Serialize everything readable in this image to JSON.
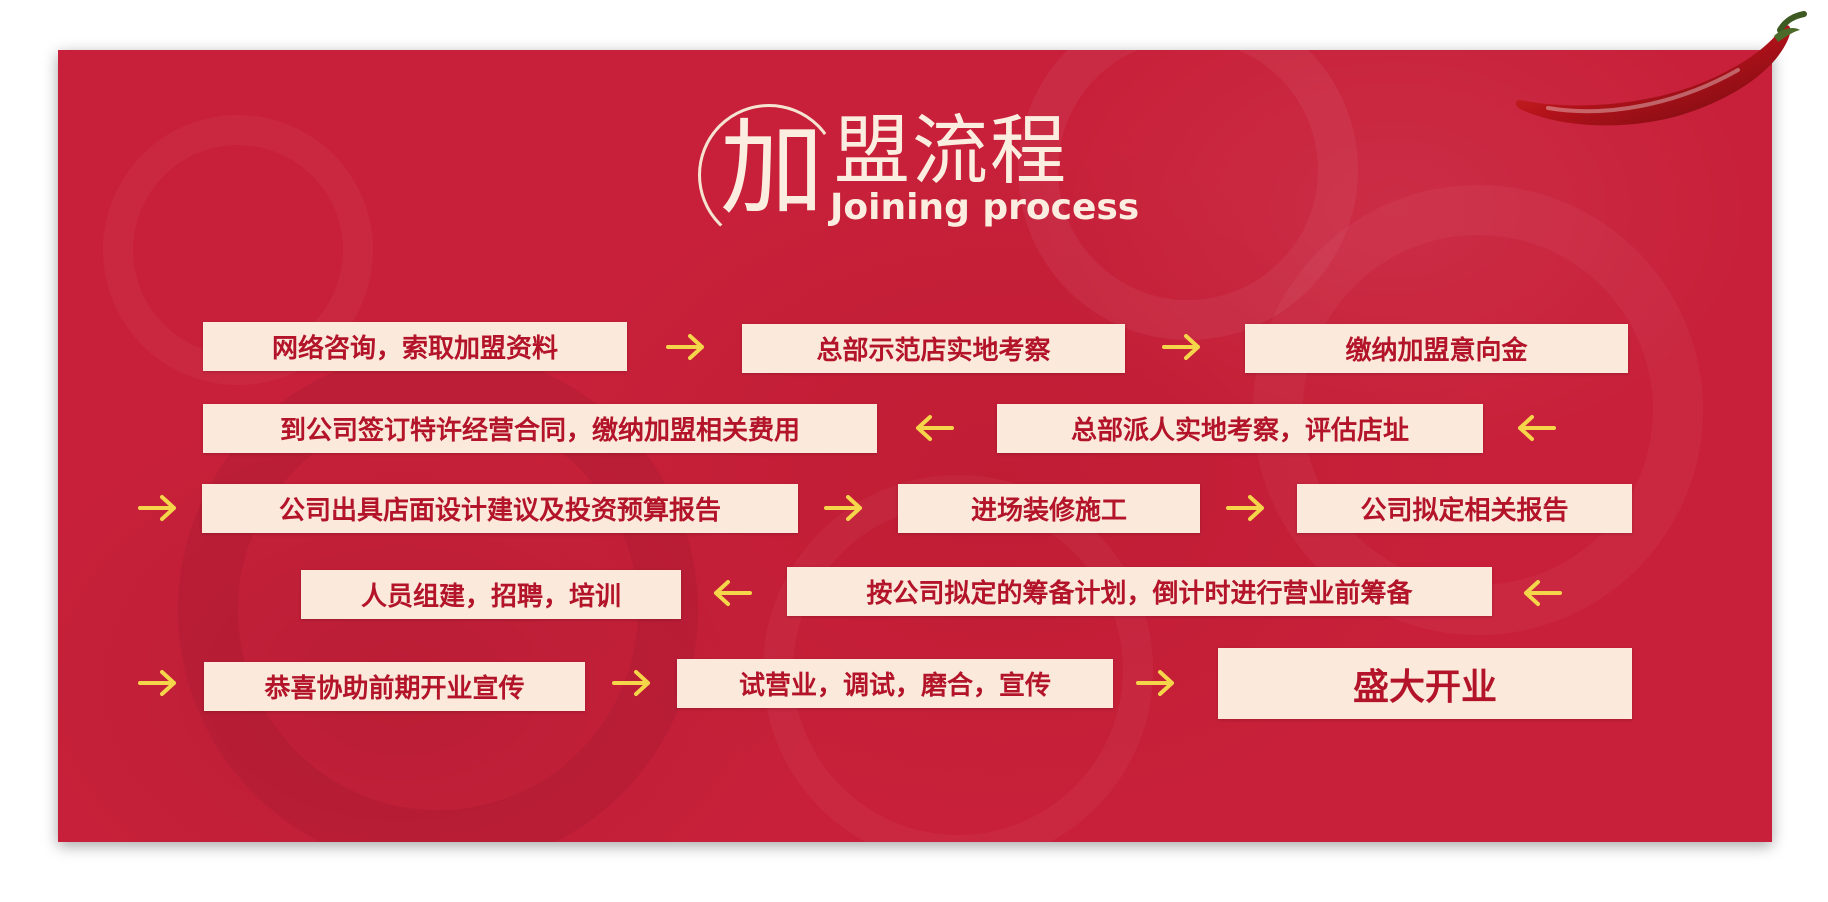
{
  "title": {
    "big_char": "加",
    "rest_chars": "盟流程",
    "english": "Joining process"
  },
  "steps": [
    {
      "label": "网络咨询，索取加盟资料"
    },
    {
      "label": "总部示范店实地考察"
    },
    {
      "label": "缴纳加盟意向金"
    },
    {
      "label": "到公司签订特许经营合同，缴纳加盟相关费用"
    },
    {
      "label": "总部派人实地考察，评估店址"
    },
    {
      "label": "公司出具店面设计建议及投资预算报告"
    },
    {
      "label": "进场装修施工"
    },
    {
      "label": "公司拟定相关报告"
    },
    {
      "label": "人员组建，招聘，培训"
    },
    {
      "label": "按公司拟定的筹备计划，倒计时进行营业前筹备"
    },
    {
      "label": "恭喜协助前期开业宣传"
    },
    {
      "label": "试营业，调试，磨合，宣传"
    },
    {
      "label": "盛大开业"
    }
  ],
  "colors": {
    "background": "#c8203a",
    "box": "#fbeadb",
    "box_text": "#b3142a",
    "arrow": "#f5d64a",
    "title": "#fbeee0"
  },
  "icons": {
    "arrow_right": "arrow-right-icon",
    "arrow_left": "arrow-left-icon",
    "decoration": "chili-pepper-icon"
  }
}
